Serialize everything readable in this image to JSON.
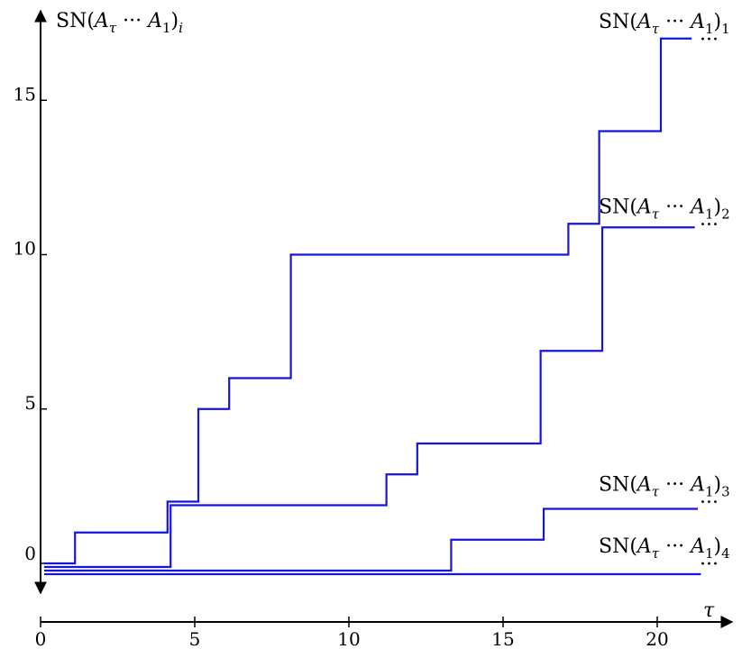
{
  "chart_data": {
    "type": "line",
    "step": true,
    "xlabel": "τ",
    "ylabel": {
      "base": "SN(",
      "A": "A",
      "tau": "τ",
      "dots": " ··· ",
      "A1": "A",
      "one": "1",
      "close": ")",
      "sub": "i"
    },
    "xticks": [
      "0",
      "5",
      "10",
      "15",
      "20"
    ],
    "yticks": [
      "0",
      "5",
      "10",
      "15"
    ],
    "xlim": [
      0,
      22
    ],
    "ylim": [
      -1,
      18
    ],
    "series_color": "#1515e0",
    "series": [
      {
        "label": {
          "base": "SN(",
          "A": "A",
          "tau": "τ",
          "dots": " ··· ",
          "A1": "A",
          "one": "1",
          "close": ")",
          "sub": "1"
        },
        "continuation": "···",
        "x": [
          0,
          1,
          4,
          5,
          6,
          8,
          17,
          18,
          20,
          21
        ],
        "y": [
          0,
          1,
          2,
          5,
          6,
          10,
          11,
          14,
          17,
          17
        ]
      },
      {
        "label": {
          "base": "SN(",
          "A": "A",
          "tau": "τ",
          "dots": " ··· ",
          "A1": "A",
          "one": "1",
          "close": ")",
          "sub": "2"
        },
        "continuation": "···",
        "x": [
          0,
          1,
          4,
          5,
          11,
          12,
          16,
          18,
          21
        ],
        "y": [
          0,
          0,
          2,
          2,
          3,
          4,
          7,
          11,
          11
        ]
      },
      {
        "label": {
          "base": "SN(",
          "A": "A",
          "tau": "τ",
          "dots": " ··· ",
          "A1": "A",
          "one": "1",
          "close": ")",
          "sub": "3"
        },
        "continuation": "···",
        "x": [
          0,
          13,
          16,
          21
        ],
        "y": [
          0,
          1,
          2,
          2
        ]
      },
      {
        "label": {
          "base": "SN(",
          "A": "A",
          "tau": "τ",
          "dots": " ··· ",
          "A1": "A",
          "one": "1",
          "close": ")",
          "sub": "4"
        },
        "continuation": "···",
        "x": [
          0,
          21
        ],
        "y": [
          0,
          0
        ]
      }
    ]
  }
}
